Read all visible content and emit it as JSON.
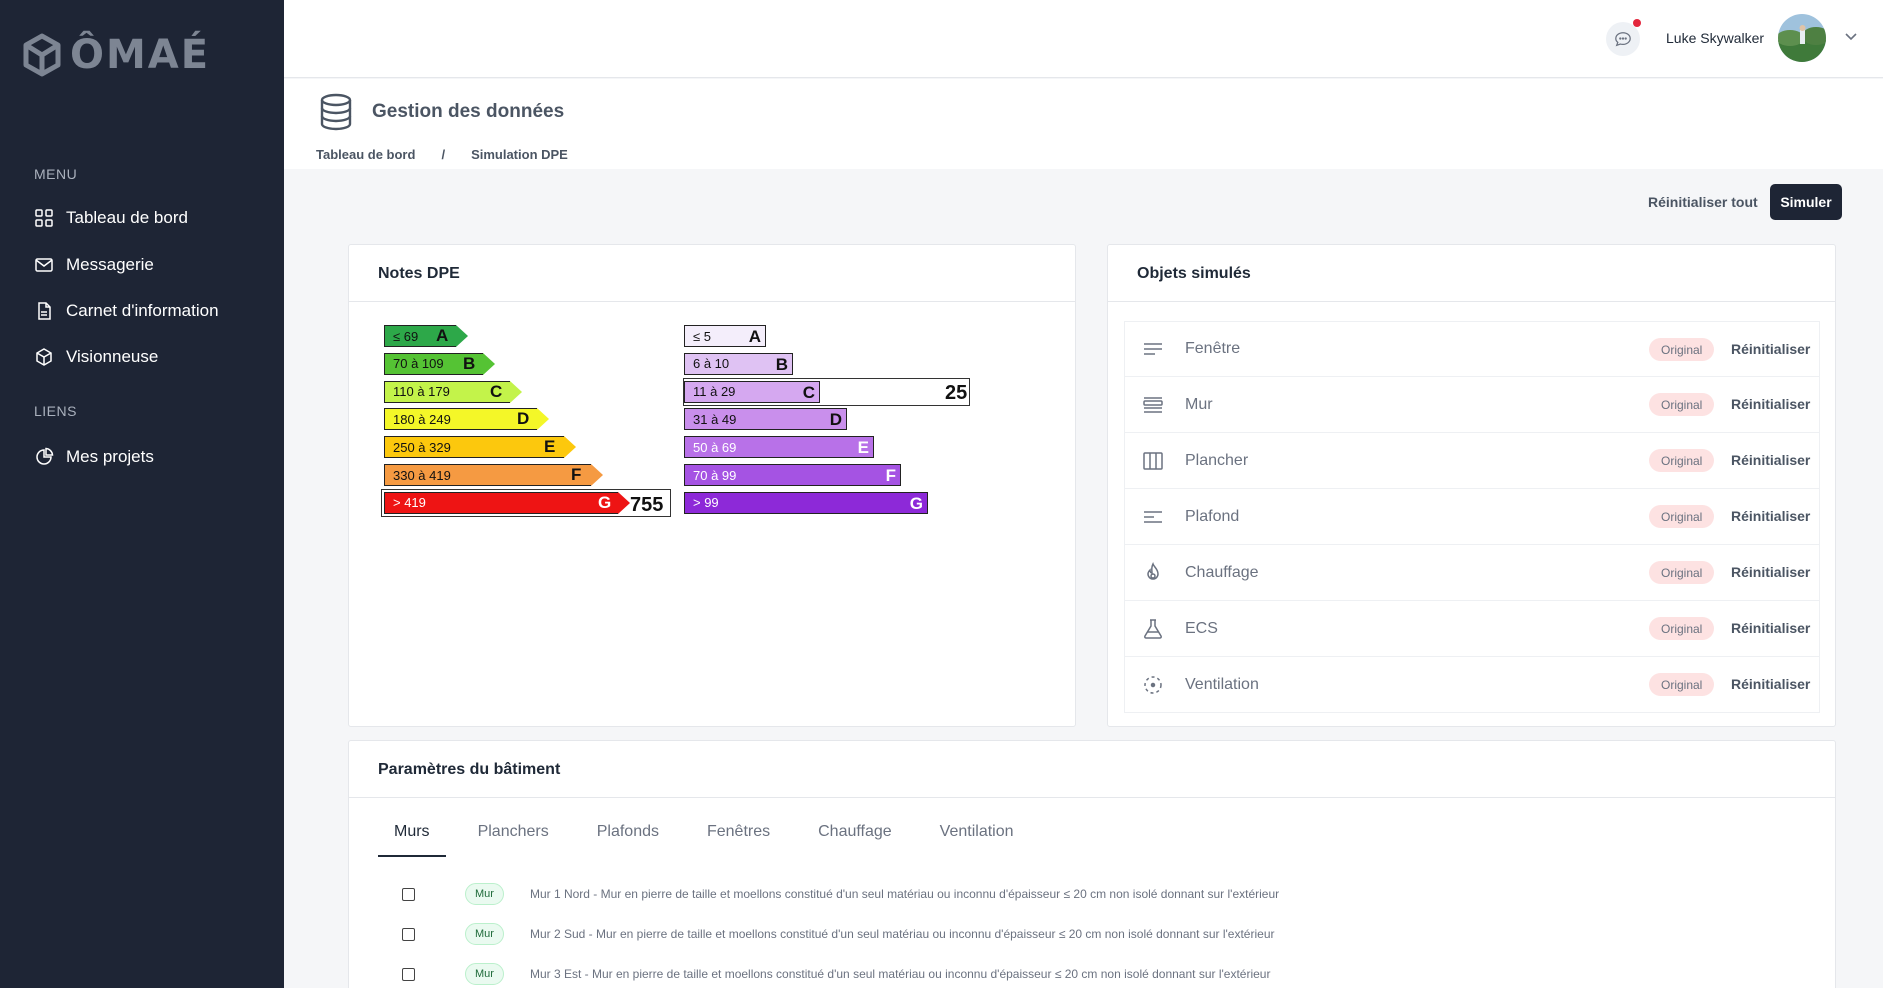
{
  "brand": {
    "name": "ÔMAÉ"
  },
  "sidebar": {
    "menu_title": "MENU",
    "menu_items": [
      {
        "label": "Tableau de bord",
        "icon": "grid-icon"
      },
      {
        "label": "Messagerie",
        "icon": "mail-icon"
      },
      {
        "label": "Carnet d'information",
        "icon": "document-icon"
      },
      {
        "label": "Visionneuse",
        "icon": "cube-icon"
      }
    ],
    "links_title": "LIENS",
    "link_items": [
      {
        "label": "Mes projets",
        "icon": "pie-chart-icon"
      }
    ]
  },
  "header": {
    "user_name": "Luke Skywalker",
    "notification": true
  },
  "page": {
    "title": "Gestion des données",
    "breadcrumb": [
      "Tableau de bord",
      "/",
      "Simulation DPE"
    ]
  },
  "actions": {
    "reset_all": "Réinitialiser tout",
    "simulate": "Simuler"
  },
  "dpe": {
    "title": "Notes DPE",
    "energy": {
      "classes": [
        {
          "range": "≤ 69",
          "letter": "A",
          "color": "#2da849"
        },
        {
          "range": "70 à 109",
          "letter": "B",
          "color": "#55c334"
        },
        {
          "range": "110 à 179",
          "letter": "C",
          "color": "#c3f34a"
        },
        {
          "range": "180 à 249",
          "letter": "D",
          "color": "#f4f728"
        },
        {
          "range": "250 à 329",
          "letter": "E",
          "color": "#fcc80d"
        },
        {
          "range": "330 à 419",
          "letter": "F",
          "color": "#f59a42"
        },
        {
          "range": "> 419",
          "letter": "G",
          "color": "#ee1414"
        }
      ],
      "current_class": "G",
      "current_value": "755"
    },
    "ges": {
      "classes": [
        {
          "range": "≤ 5",
          "letter": "A",
          "color": "#f4eefb"
        },
        {
          "range": "6 à 10",
          "letter": "B",
          "color": "#dfc2f3"
        },
        {
          "range": "11 à 29",
          "letter": "C",
          "color": "#d5a8f0"
        },
        {
          "range": "31 à 49",
          "letter": "D",
          "color": "#c98fec"
        },
        {
          "range": "50 à 69",
          "letter": "E",
          "color": "#b871e8"
        },
        {
          "range": "70 à 99",
          "letter": "F",
          "color": "#a553e3"
        },
        {
          "range": "> 99",
          "letter": "G",
          "color": "#8d29d8"
        }
      ],
      "current_class": "C",
      "current_value": "25"
    }
  },
  "objects": {
    "title": "Objets simulés",
    "badge_label": "Original",
    "reset_label": "Réinitialiser",
    "items": [
      {
        "label": "Fenêtre",
        "icon": "lines-icon"
      },
      {
        "label": "Mur",
        "icon": "stack-icon"
      },
      {
        "label": "Plancher",
        "icon": "columns-icon"
      },
      {
        "label": "Plafond",
        "icon": "align-left-icon"
      },
      {
        "label": "Chauffage",
        "icon": "flame-icon"
      },
      {
        "label": "ECS",
        "icon": "flask-icon"
      },
      {
        "label": "Ventilation",
        "icon": "dashed-circle-icon"
      }
    ]
  },
  "building": {
    "title": "Paramètres du bâtiment",
    "tabs": [
      "Murs",
      "Planchers",
      "Plafonds",
      "Fenêtres",
      "Chauffage",
      "Ventilation"
    ],
    "active_tab": "Murs",
    "walls": [
      {
        "badge": "Mur",
        "text": "Mur 1 Nord - Mur en pierre de taille et moellons constitué d'un seul matériau ou inconnu d'épaisseur ≤ 20 cm non isolé donnant sur l'extérieur"
      },
      {
        "badge": "Mur",
        "text": "Mur 2 Sud - Mur en pierre de taille et moellons constitué d'un seul matériau ou inconnu d'épaisseur ≤ 20 cm non isolé donnant sur l'extérieur"
      },
      {
        "badge": "Mur",
        "text": "Mur 3 Est - Mur en pierre de taille et moellons constitué d'un seul matériau ou inconnu d'épaisseur ≤ 20 cm non isolé donnant sur l'extérieur"
      }
    ]
  }
}
